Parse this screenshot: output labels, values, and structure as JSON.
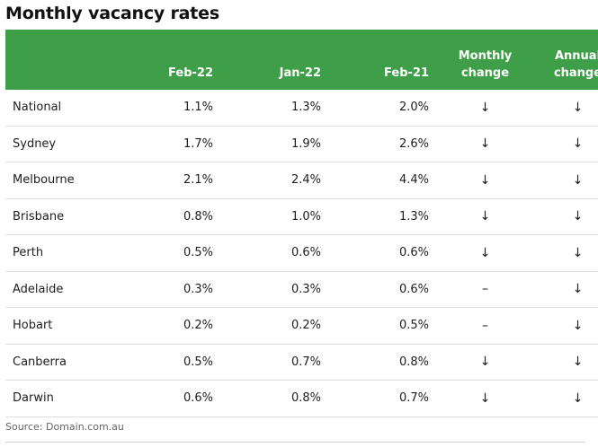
{
  "title": "Monthly vacancy rates",
  "table": {
    "header_color": "#3f9e48",
    "columns": [
      "",
      "Feb-22",
      "Jan-22",
      "Feb-21",
      "Monthly change",
      "Annual change"
    ],
    "rows": [
      {
        "city": "National",
        "feb22": "1.1%",
        "jan22": "1.3%",
        "feb21": "2.0%",
        "monthly": "↓",
        "annual": "↓"
      },
      {
        "city": "Sydney",
        "feb22": "1.7%",
        "jan22": "1.9%",
        "feb21": "2.6%",
        "monthly": "↓",
        "annual": "↓"
      },
      {
        "city": "Melbourne",
        "feb22": "2.1%",
        "jan22": "2.4%",
        "feb21": "4.4%",
        "monthly": "↓",
        "annual": "↓"
      },
      {
        "city": "Brisbane",
        "feb22": "0.8%",
        "jan22": "1.0%",
        "feb21": "1.3%",
        "monthly": "↓",
        "annual": "↓"
      },
      {
        "city": "Perth",
        "feb22": "0.5%",
        "jan22": "0.6%",
        "feb21": "0.6%",
        "monthly": "↓",
        "annual": "↓"
      },
      {
        "city": "Adelaide",
        "feb22": "0.3%",
        "jan22": "0.3%",
        "feb21": "0.6%",
        "monthly": "–",
        "annual": "↓"
      },
      {
        "city": "Hobart",
        "feb22": "0.2%",
        "jan22": "0.2%",
        "feb21": "0.5%",
        "monthly": "–",
        "annual": "↓"
      },
      {
        "city": "Canberra",
        "feb22": "0.5%",
        "jan22": "0.7%",
        "feb21": "0.8%",
        "monthly": "↓",
        "annual": "↓"
      },
      {
        "city": "Darwin",
        "feb22": "0.6%",
        "jan22": "0.8%",
        "feb21": "0.7%",
        "monthly": "↓",
        "annual": "↓"
      }
    ]
  },
  "source": "Source: Domain.com.au"
}
